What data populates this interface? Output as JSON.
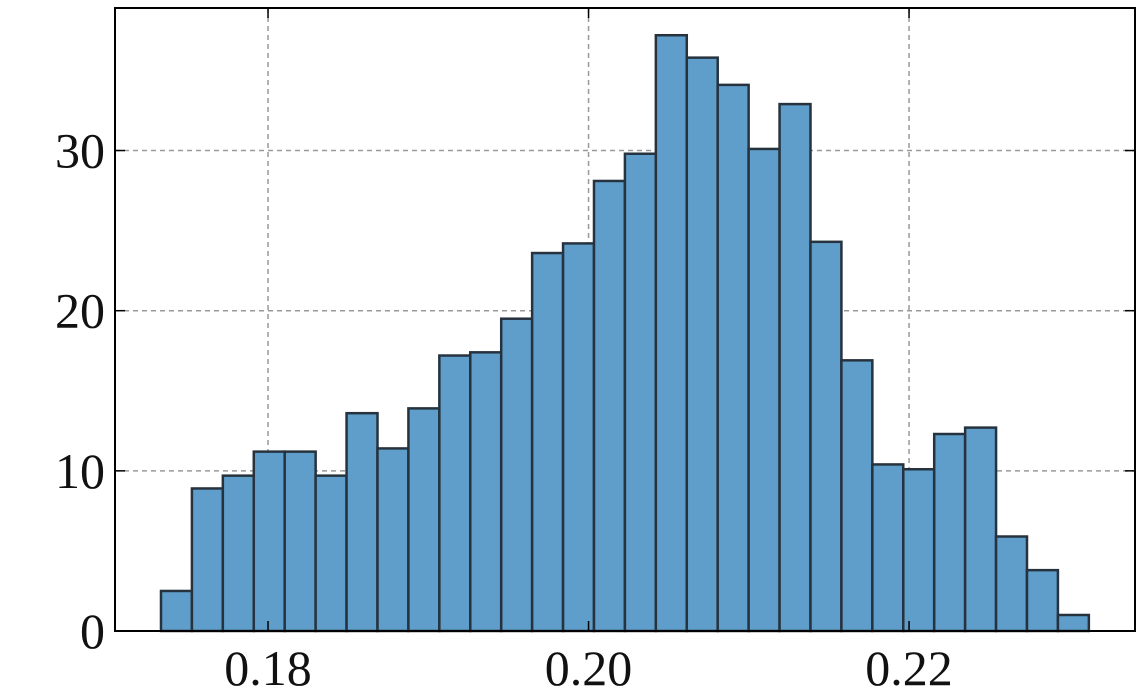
{
  "chart_data": {
    "type": "histogram",
    "bins": [
      0.17332,
      0.17525,
      0.17718,
      0.17911,
      0.18104,
      0.18297,
      0.1849,
      0.18683,
      0.18876,
      0.19069,
      0.19262,
      0.19455,
      0.19648,
      0.19841,
      0.20034,
      0.20227,
      0.2042,
      0.20613,
      0.20806,
      0.20999,
      0.21192,
      0.21385,
      0.21578,
      0.21771,
      0.21964,
      0.22157,
      0.2235,
      0.22543,
      0.22736,
      0.22929,
      0.23122
    ],
    "values": [
      2.5,
      8.9,
      9.7,
      11.2,
      11.2,
      9.7,
      13.6,
      11.4,
      13.9,
      17.2,
      17.4,
      19.5,
      23.6,
      24.2,
      28.1,
      29.8,
      37.2,
      35.8,
      34.1,
      30.1,
      32.9,
      24.3,
      16.9,
      10.4,
      10.1,
      12.3,
      12.7,
      5.9,
      3.8,
      1.0
    ],
    "color": "#5f9ecb",
    "edgecolor": "#26333f",
    "xlim": [
      0.17045,
      0.2341
    ],
    "ylim": [
      0,
      38.9
    ],
    "xticks": [
      0.18,
      {
        "value": 0.2,
        "label": "0.20"
      },
      0.22
    ],
    "yticks": [
      0,
      10,
      20,
      30
    ],
    "grid": true
  }
}
